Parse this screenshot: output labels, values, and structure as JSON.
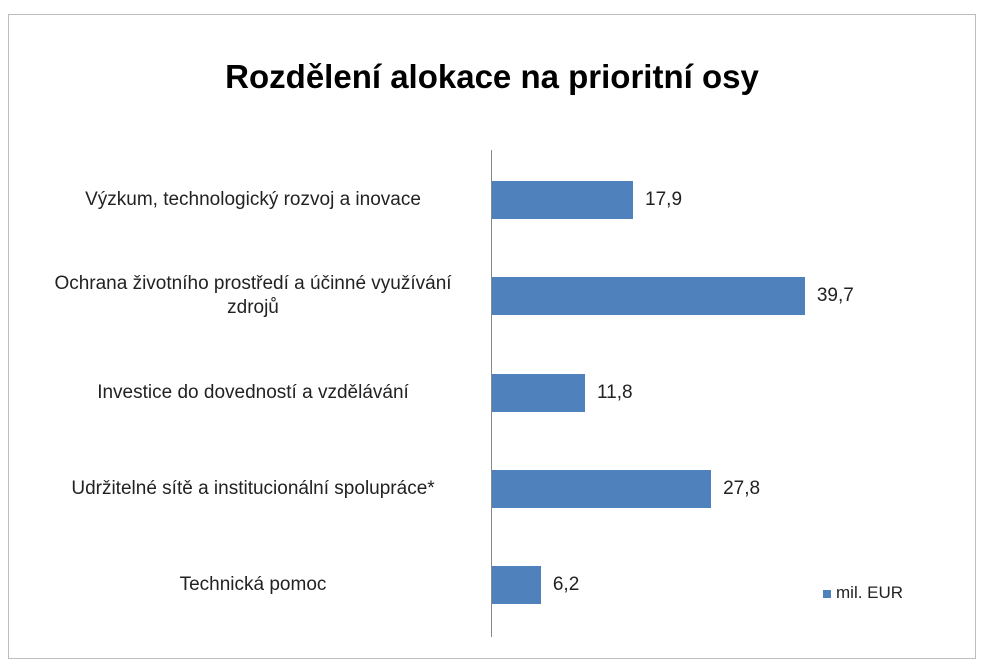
{
  "chart_data": {
    "type": "bar",
    "orientation": "horizontal",
    "title": "Rozdělení alokace na prioritní osy",
    "categories": [
      "Výzkum, technologický rozvoj a inovace",
      "Ochrana životního prostředí a účinné využívání zdrojů",
      "Investice do dovedností a vzdělávání",
      "Udržitelné sítě a institucionální spolupráce*",
      "Technická pomoc"
    ],
    "series": [
      {
        "name": "mil. EUR",
        "color": "#4f81bd",
        "values": [
          17.9,
          39.7,
          11.8,
          27.8,
          6.2
        ],
        "value_labels": [
          "17,9",
          "39,7",
          "11,8",
          "27,8",
          "6,2"
        ]
      }
    ],
    "legend": "bottom-right"
  }
}
